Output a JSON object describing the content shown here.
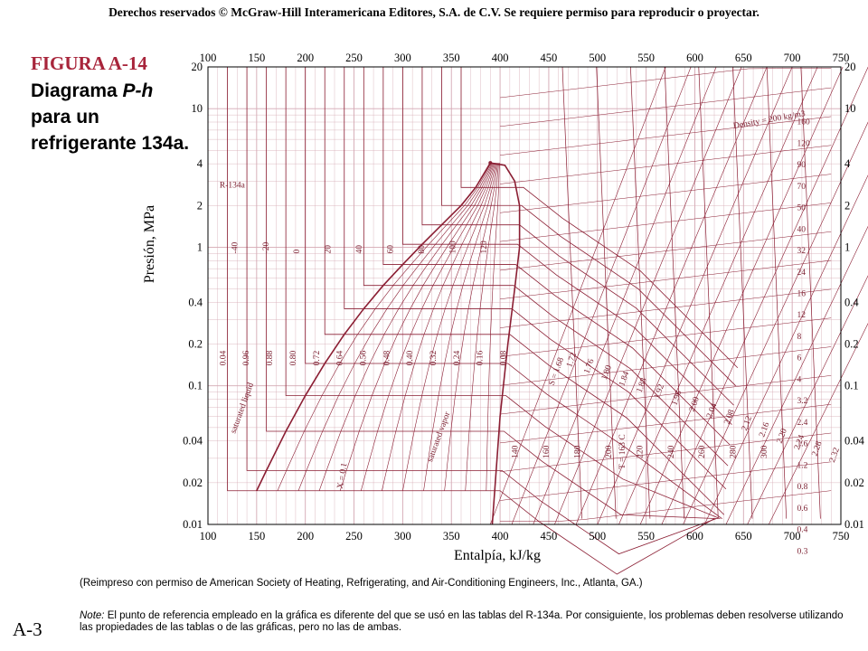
{
  "header": {
    "copyright": "Derechos reservados © McGraw-Hill Interamericana Editores, S.A. de C.V. Se requiere permiso para reproducir o proyectar."
  },
  "figure": {
    "number": "FIGURA A-14",
    "title_line1": "Diagrama ",
    "title_italic": "P-h",
    "title_line2": "para un refrigerante 134a."
  },
  "chart_data": {
    "type": "line",
    "title": "",
    "xlabel": "Entalpía, kJ/kg",
    "ylabel": "Presión, MPa",
    "xlim": [
      100,
      750
    ],
    "ylim": [
      0.01,
      20
    ],
    "y_scale": "log",
    "x_ticks": [
      "100",
      "150",
      "200",
      "250",
      "300",
      "350",
      "400",
      "450",
      "500",
      "550",
      "600",
      "650",
      "700",
      "750"
    ],
    "y_ticks": [
      "20",
      "10",
      "4",
      "2",
      "1",
      "0.4",
      "0.2",
      "0.1",
      "0.04",
      "0.02",
      "0.01"
    ],
    "y_tick_values": [
      20,
      10,
      4,
      2,
      1,
      0.4,
      0.2,
      0.1,
      0.04,
      0.02,
      0.01
    ],
    "grid": true,
    "substance_label": "R-134a",
    "critical_point": {
      "h": 390,
      "p": 4.06
    },
    "saturated_liquid": {
      "h": [
        150,
        160,
        180,
        200,
        220,
        240,
        260,
        280,
        300,
        320,
        340,
        360,
        375,
        390
      ],
      "p": [
        0.0175,
        0.0245,
        0.047,
        0.085,
        0.145,
        0.235,
        0.36,
        0.53,
        0.75,
        1.05,
        1.45,
        2.0,
        2.7,
        4.06
      ]
    },
    "saturated_vapor": {
      "h": [
        390,
        405,
        415,
        420,
        420,
        415,
        408,
        400,
        392
      ],
      "p": [
        4.06,
        3.9,
        3.0,
        2.0,
        1.0,
        0.5,
        0.2,
        0.06,
        0.01
      ]
    },
    "isotherm_labels": [
      "-40",
      "-20",
      "0",
      "20",
      "40",
      "60",
      "80",
      "100",
      "120",
      "140",
      "160",
      "180",
      "200",
      "220",
      "240",
      "260",
      "280",
      "300",
      "T = 163 C"
    ],
    "density_labels": [
      "Density = 200 kg/m3",
      "160",
      "120",
      "90",
      "70",
      "50",
      "40",
      "32",
      "24",
      "16",
      "12",
      "8",
      "6",
      "4",
      "3.2",
      "2.4",
      "1.6",
      "1.2",
      "0.8",
      "0.6",
      "0.4",
      "0.3"
    ],
    "entropy_labels": [
      "S = 1.68",
      "1.72",
      "1.76",
      "1.80",
      "1.84",
      "1.88",
      "1.92",
      "1.96",
      "2.00",
      "2.04",
      "2.08",
      "2.12",
      "2.16",
      "2.20",
      "2.24",
      "2.28",
      "2.32"
    ],
    "quality_labels": [
      "0.04",
      "0.96",
      "0.88",
      "0.80",
      "0.72",
      "0.64",
      "0.56",
      "0.48",
      "0.40",
      "0.32",
      "0.24",
      "0.16",
      "0.08"
    ],
    "annotations": [
      "saturated liquid",
      "saturated vapor",
      "X = 0.1"
    ]
  },
  "source": "(Reimpreso con permiso de American Society of Heating, Refrigerating, and Air-Conditioning Engineers, Inc., Atlanta, GA.)",
  "note": {
    "lead": "Note:",
    "text": " El punto de referencia empleado en la gráfica es diferente del que se usó en las tablas del R-134a.  Por consiguiente, los problemas deben resolverse utilizando las propiedades de las tablas o de las gráficas, pero no las de ambas."
  },
  "page_number": "A-3",
  "colors": {
    "curve": "#8b1e33",
    "grid": "#d4a8b3",
    "accent": "#a8253b"
  }
}
